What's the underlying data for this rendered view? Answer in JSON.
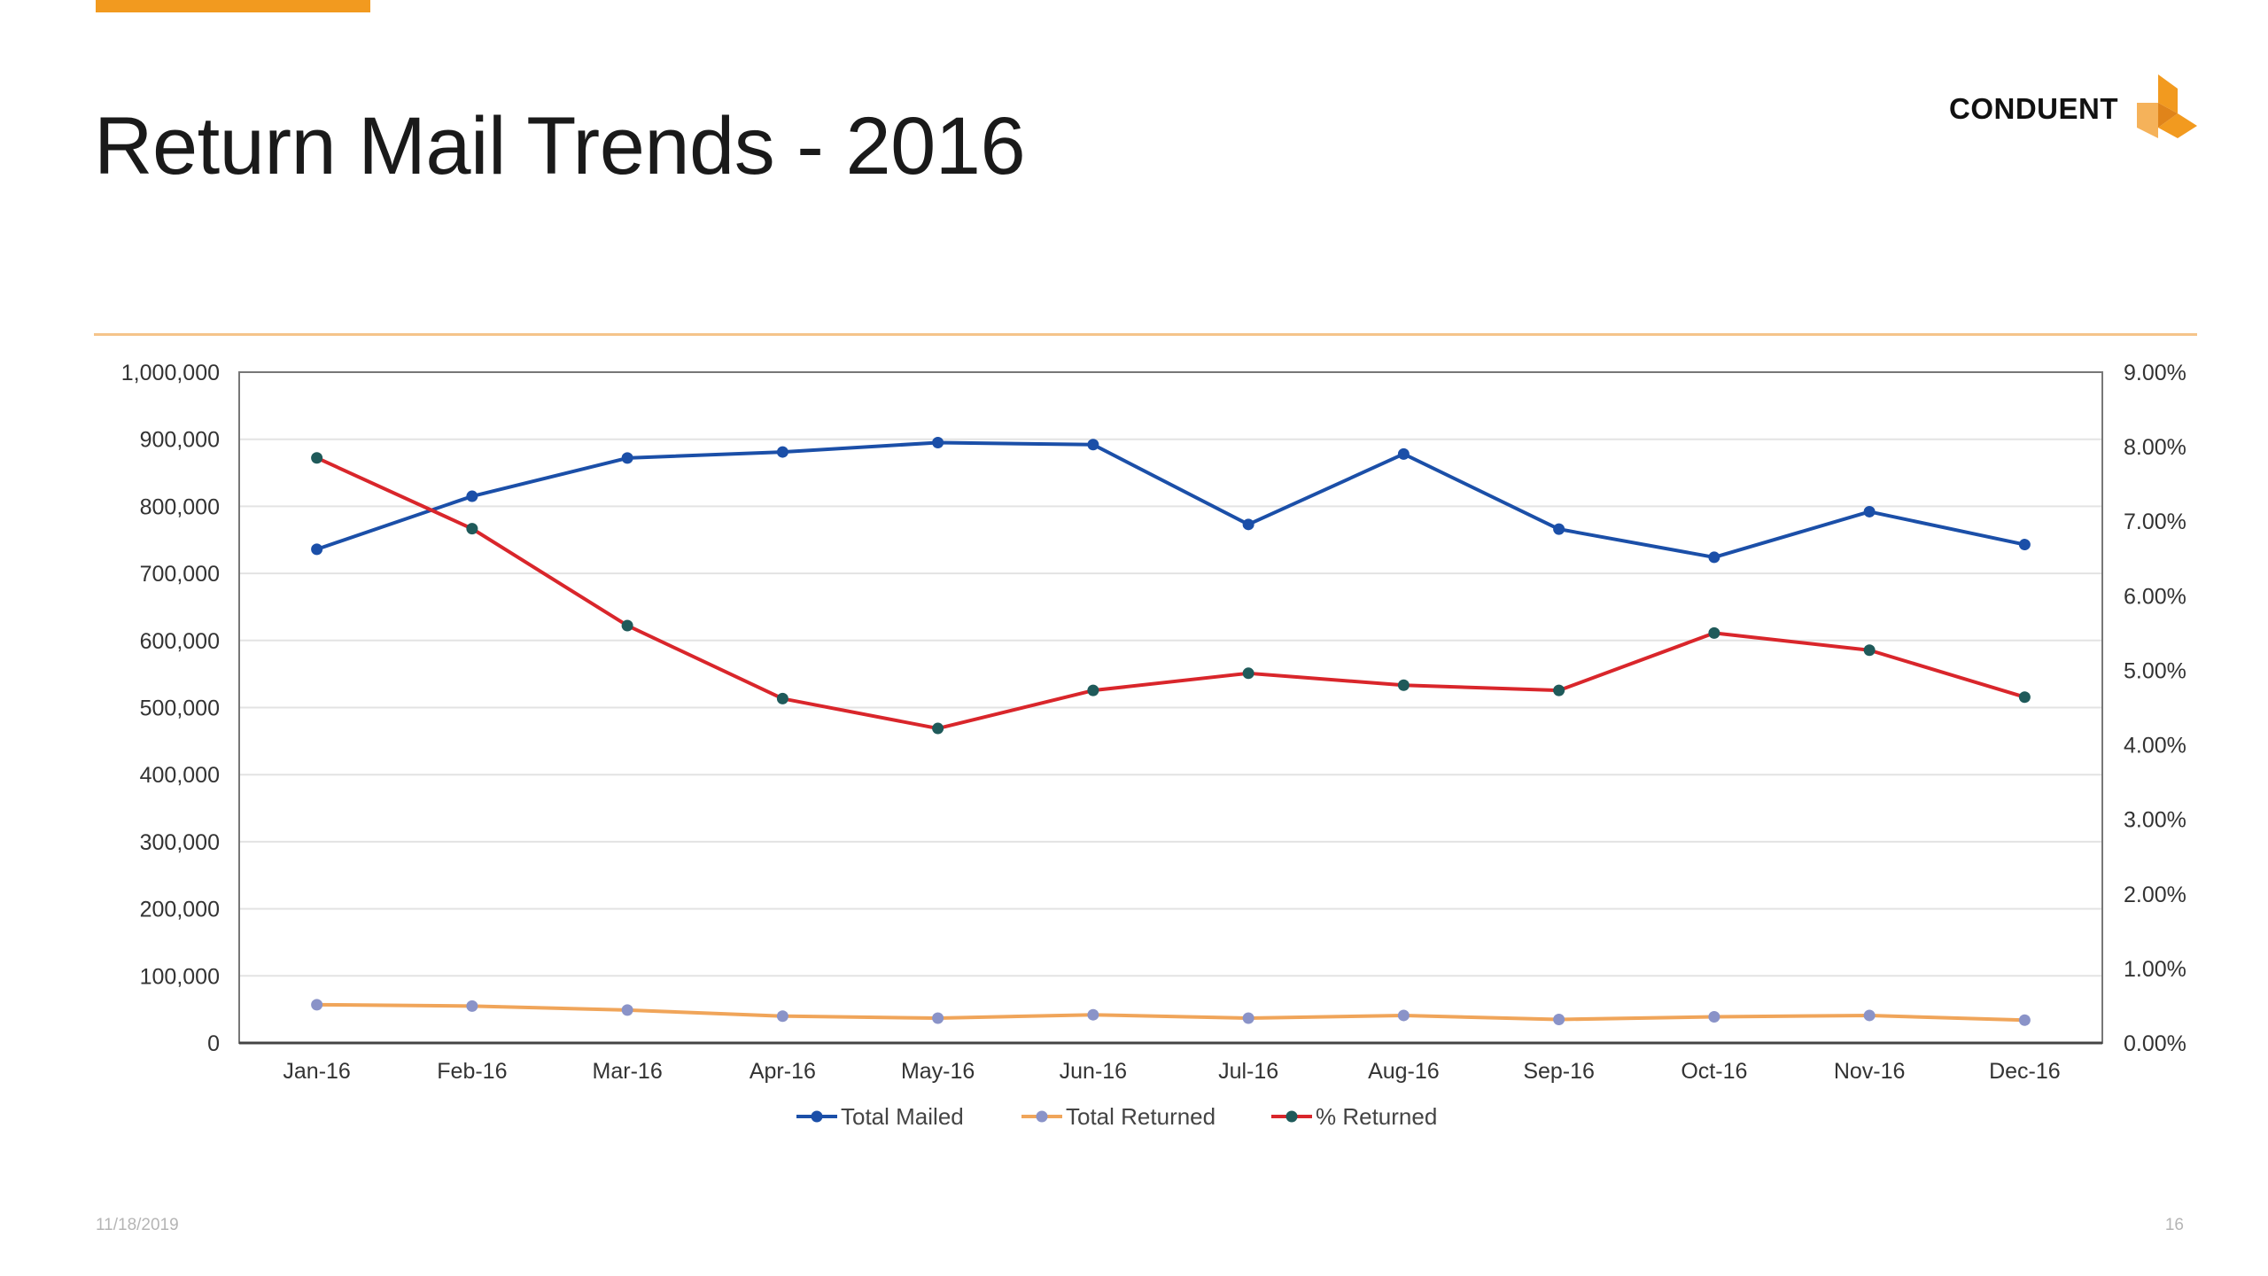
{
  "slide": {
    "title": "Return Mail Trends - 2016",
    "date": "11/18/2019",
    "page_number": "16"
  },
  "logo": {
    "text": "CONDUENT",
    "icon": "conduent-logo-mark"
  },
  "colors": {
    "accent": "#f29a1f",
    "rule": "#f5c48a",
    "total_mailed": "#1b4fa8",
    "total_returned": "#f0a55a",
    "pct_returned": "#d9262b",
    "returned_marker": "#8a93c8",
    "pct_marker": "#1f5a5a"
  },
  "chart_data": {
    "type": "line",
    "categories": [
      "Jan-16",
      "Feb-16",
      "Mar-16",
      "Apr-16",
      "May-16",
      "Jun-16",
      "Jul-16",
      "Aug-16",
      "Sep-16",
      "Oct-16",
      "Nov-16",
      "Dec-16"
    ],
    "series": [
      {
        "name": "Total Mailed",
        "axis": "left",
        "values": [
          736000,
          815000,
          872000,
          881000,
          895000,
          892000,
          773000,
          878000,
          766000,
          724000,
          792000,
          743000
        ]
      },
      {
        "name": "Total Returned",
        "axis": "left",
        "values": [
          57000,
          55000,
          49000,
          40000,
          37000,
          42000,
          37000,
          41000,
          35000,
          39000,
          41000,
          34000
        ]
      },
      {
        "name": "% Returned",
        "axis": "right",
        "values": [
          7.85,
          6.9,
          5.6,
          4.62,
          4.22,
          4.73,
          4.96,
          4.8,
          4.73,
          5.5,
          5.27,
          4.64
        ]
      }
    ],
    "y_left": {
      "range": [
        0,
        1000000
      ],
      "ticks": [
        "0",
        "100,000",
        "200,000",
        "300,000",
        "400,000",
        "500,000",
        "600,000",
        "700,000",
        "800,000",
        "900,000",
        "1,000,000"
      ]
    },
    "y_right": {
      "range": [
        0,
        9
      ],
      "ticks": [
        "0.00%",
        "1.00%",
        "2.00%",
        "3.00%",
        "4.00%",
        "5.00%",
        "6.00%",
        "7.00%",
        "8.00%",
        "9.00%"
      ]
    },
    "grid": true,
    "legend": "bottom"
  }
}
